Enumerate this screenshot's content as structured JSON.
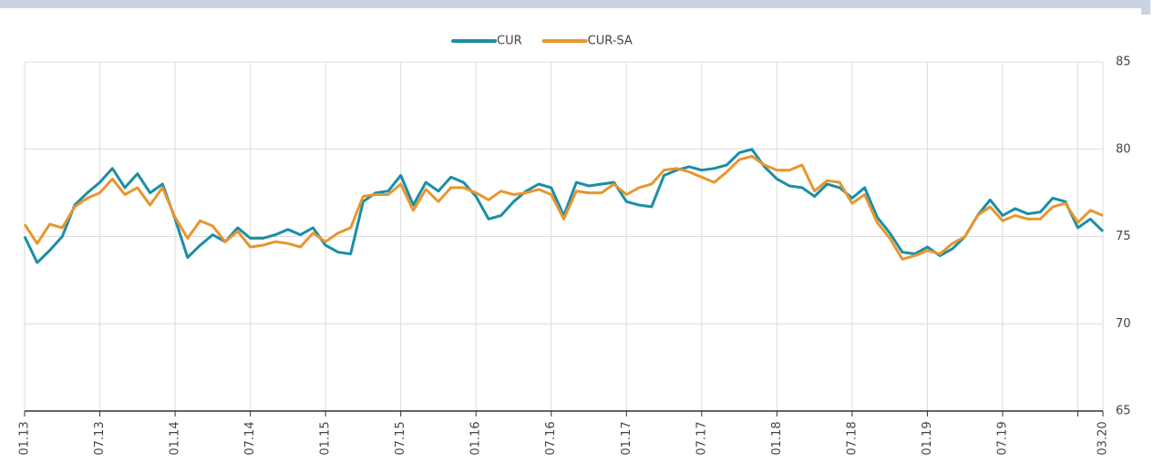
{
  "chart_data": {
    "type": "line",
    "categories": [
      "01.13",
      null,
      null,
      null,
      null,
      null,
      "07.13",
      null,
      null,
      null,
      null,
      null,
      "01.14",
      null,
      null,
      null,
      null,
      null,
      "07.14",
      null,
      null,
      null,
      null,
      null,
      "01.15",
      null,
      null,
      null,
      null,
      null,
      "07.15",
      null,
      null,
      null,
      null,
      null,
      "01.16",
      null,
      null,
      null,
      null,
      null,
      "07.16",
      null,
      null,
      null,
      null,
      null,
      "01.17",
      null,
      null,
      null,
      null,
      null,
      "07.17",
      null,
      null,
      null,
      null,
      null,
      "01.18",
      null,
      null,
      null,
      null,
      null,
      "07.18",
      null,
      null,
      null,
      null,
      null,
      "01.19",
      null,
      null,
      null,
      null,
      null,
      "07.19",
      null,
      null,
      null,
      null,
      null,
      null,
      null,
      "03.20"
    ],
    "series": [
      {
        "name": "CUR",
        "color": "#1b8ea6",
        "values": [
          75.0,
          73.5,
          74.2,
          75.0,
          76.8,
          77.5,
          78.1,
          78.9,
          77.8,
          78.6,
          77.5,
          78.0,
          76.0,
          73.8,
          74.5,
          75.1,
          74.7,
          75.5,
          74.9,
          74.9,
          75.1,
          75.4,
          75.1,
          75.5,
          74.5,
          74.1,
          74.0,
          77.0,
          77.5,
          77.6,
          78.5,
          76.8,
          78.1,
          77.6,
          78.4,
          78.1,
          77.3,
          76.0,
          76.2,
          77.0,
          77.6,
          78.0,
          77.8,
          76.2,
          78.1,
          77.9,
          78.0,
          78.1,
          77.0,
          76.8,
          76.7,
          78.5,
          78.8,
          79.0,
          78.8,
          78.9,
          79.1,
          79.8,
          80.0,
          79.0,
          78.3,
          77.9,
          77.8,
          77.3,
          78.0,
          77.8,
          77.2,
          77.8,
          76.1,
          75.2,
          74.1,
          74.0,
          74.4,
          73.9,
          74.3,
          75.0,
          76.2,
          77.1,
          76.2,
          76.6,
          76.3,
          76.4,
          77.2,
          77.0,
          75.5,
          76.0,
          75.3
        ]
      },
      {
        "name": "CUR-SA",
        "color": "#e8962e",
        "values": [
          75.7,
          74.6,
          75.7,
          75.5,
          76.7,
          77.2,
          77.5,
          78.3,
          77.4,
          77.8,
          76.8,
          77.8,
          76.1,
          74.9,
          75.9,
          75.6,
          74.7,
          75.3,
          74.4,
          74.5,
          74.7,
          74.6,
          74.4,
          75.2,
          74.7,
          75.2,
          75.5,
          77.3,
          77.4,
          77.4,
          78.0,
          76.5,
          77.7,
          77.0,
          77.8,
          77.8,
          77.5,
          77.1,
          77.6,
          77.4,
          77.5,
          77.7,
          77.4,
          76.0,
          77.6,
          77.5,
          77.5,
          78.0,
          77.4,
          77.8,
          78.0,
          78.8,
          78.9,
          78.7,
          78.4,
          78.1,
          78.7,
          79.4,
          79.6,
          79.1,
          78.8,
          78.8,
          79.1,
          77.6,
          78.2,
          78.1,
          76.9,
          77.4,
          75.8,
          74.9,
          73.7,
          73.9,
          74.2,
          74.0,
          74.6,
          75.0,
          76.2,
          76.7,
          75.9,
          76.2,
          76.0,
          76.0,
          76.7,
          76.9,
          75.8,
          76.5,
          76.2
        ]
      }
    ],
    "ylim": [
      65,
      85
    ],
    "yticks": [
      65,
      70,
      75,
      80,
      85
    ],
    "grid": true,
    "legend": "top"
  }
}
